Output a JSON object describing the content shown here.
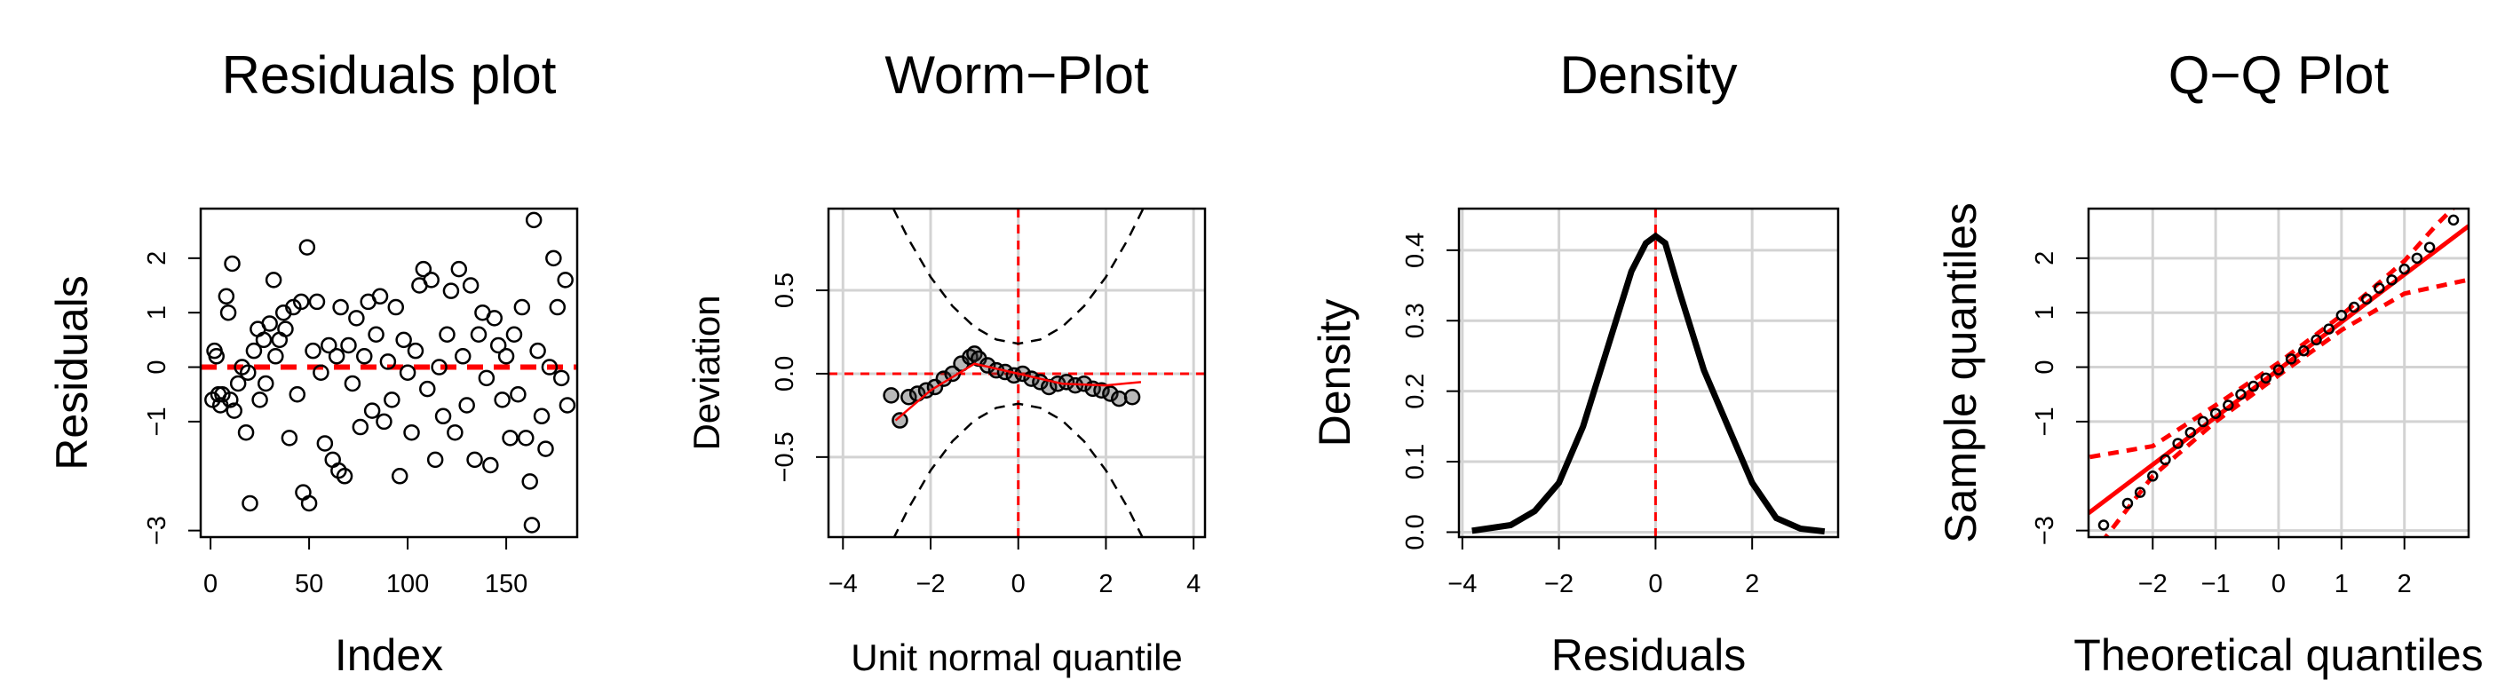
{
  "chart_data": [
    {
      "type": "scatter",
      "title": "Residuals plot",
      "xlabel": "Index",
      "ylabel": "Residuals",
      "xlim": [
        -5,
        186
      ],
      "ylim": [
        -3.12,
        2.91
      ],
      "xticks": [
        0,
        50,
        100,
        150
      ],
      "yticks": [
        {
          "value": -3,
          "label": "−3"
        },
        {
          "value": -1,
          "label": "−1"
        },
        0,
        1,
        2
      ],
      "grid": false,
      "hlines": [
        0
      ],
      "vlines": [],
      "ref_color": "#ff0000",
      "series": [
        {
          "type": "scatter",
          "color": "#000000",
          "x": [
            1,
            2,
            3,
            4,
            5,
            6,
            8,
            9,
            10,
            11,
            12,
            14,
            16,
            18,
            19,
            20,
            22,
            24,
            25,
            27,
            28,
            30,
            32,
            33,
            35,
            37,
            38,
            40,
            42,
            44,
            46,
            47,
            49,
            50,
            52,
            54,
            56,
            58,
            60,
            62,
            64,
            65,
            66,
            68,
            70,
            72,
            74,
            76,
            78,
            80,
            82,
            84,
            86,
            88,
            90,
            92,
            94,
            96,
            98,
            100,
            102,
            104,
            106,
            108,
            110,
            112,
            114,
            116,
            118,
            120,
            122,
            124,
            126,
            128,
            130,
            132,
            134,
            136,
            138,
            140,
            142,
            144,
            146,
            148,
            150,
            152,
            154,
            156,
            158,
            160,
            162,
            163,
            164,
            166,
            168,
            170,
            172,
            174,
            176,
            178,
            180,
            181
          ],
          "values": [
            -0.6,
            0.3,
            0.2,
            -0.5,
            -0.7,
            -0.5,
            1.3,
            1.0,
            -0.6,
            1.9,
            -0.8,
            -0.3,
            0.0,
            -1.2,
            -0.1,
            -2.5,
            0.3,
            0.7,
            -0.6,
            0.5,
            -0.3,
            0.8,
            1.6,
            0.2,
            0.5,
            1.0,
            0.7,
            -1.3,
            1.1,
            -0.5,
            1.2,
            -2.3,
            2.2,
            -2.5,
            0.3,
            1.2,
            -0.1,
            -1.4,
            0.4,
            -1.7,
            0.2,
            -1.9,
            1.1,
            -2.0,
            0.4,
            -0.3,
            0.9,
            -1.1,
            0.2,
            1.2,
            -0.8,
            0.6,
            1.3,
            -1.0,
            0.1,
            -0.6,
            1.1,
            -2.0,
            0.5,
            -0.1,
            -1.2,
            0.3,
            1.5,
            1.8,
            -0.4,
            1.6,
            -1.7,
            0.0,
            -0.9,
            0.6,
            1.4,
            -1.2,
            1.8,
            0.2,
            -0.7,
            1.5,
            -1.7,
            0.6,
            1.0,
            -0.2,
            -1.8,
            0.9,
            0.4,
            -0.6,
            0.2,
            -1.3,
            0.6,
            -0.5,
            1.1,
            -1.3,
            -2.1,
            -2.9,
            2.7,
            0.3,
            -0.9,
            -1.5,
            0.0,
            2.0,
            1.1,
            -0.2,
            1.6,
            -0.7
          ]
        }
      ]
    },
    {
      "type": "scatter",
      "title": "Worm−Plot",
      "xlabel": "Unit normal quantile",
      "ylabel": "Deviation",
      "xlim": [
        -4.33,
        4.26
      ],
      "ylim": [
        -0.98,
        0.99
      ],
      "xticks": [
        {
          "value": -4,
          "label": "−4"
        },
        {
          "value": -2,
          "label": "−2"
        },
        0,
        2,
        4
      ],
      "yticks": [
        {
          "value": -0.5,
          "label": "−0.5"
        },
        {
          "value": 0,
          "label": "0.0"
        },
        0.5
      ],
      "grid": true,
      "hlines": [
        0
      ],
      "vlines": [
        0
      ],
      "ref_color": "#ff0000",
      "series": [
        {
          "type": "line",
          "color": "#000000",
          "dash": true,
          "x": [
            -2.85,
            -2.5,
            -2,
            -1.5,
            -1,
            -0.5,
            0,
            0.5,
            1,
            1.5,
            2,
            2.5,
            2.85
          ],
          "values": [
            0.99,
            0.805,
            0.58,
            0.405,
            0.28,
            0.205,
            0.18,
            0.205,
            0.28,
            0.405,
            0.58,
            0.805,
            0.99
          ]
        },
        {
          "type": "line",
          "color": "#000000",
          "dash": true,
          "x": [
            -2.85,
            -2.5,
            -2,
            -1.5,
            -1,
            -0.5,
            0,
            0.5,
            1,
            1.5,
            2,
            2.5,
            2.85
          ],
          "values": [
            -0.99,
            -0.805,
            -0.58,
            -0.405,
            -0.28,
            -0.205,
            -0.18,
            -0.205,
            -0.28,
            -0.405,
            -0.58,
            -0.805,
            -0.99
          ]
        },
        {
          "type": "scatter",
          "color": "#000000",
          "x": [
            -2.9,
            -2.7,
            -2.5,
            -2.3,
            -2.1,
            -1.9,
            -1.7,
            -1.5,
            -1.3,
            -1.1,
            -1.0,
            -0.9,
            -0.7,
            -0.5,
            -0.3,
            -0.1,
            0.1,
            0.3,
            0.5,
            0.7,
            0.9,
            1.1,
            1.3,
            1.5,
            1.7,
            1.9,
            2.1,
            2.3,
            2.6
          ],
          "values": [
            -0.13,
            -0.28,
            -0.14,
            -0.12,
            -0.1,
            -0.08,
            -0.03,
            0.0,
            0.06,
            0.1,
            0.12,
            0.09,
            0.05,
            0.02,
            0.01,
            -0.01,
            0.0,
            -0.03,
            -0.05,
            -0.08,
            -0.06,
            -0.05,
            -0.07,
            -0.06,
            -0.09,
            -0.1,
            -0.12,
            -0.15,
            -0.14
          ]
        },
        {
          "type": "line",
          "color": "#ff0000",
          "x": [
            -2.8,
            -2,
            -1,
            0,
            1,
            2,
            2.8
          ],
          "values": [
            -0.28,
            -0.1,
            0.06,
            0.0,
            -0.06,
            -0.07,
            -0.05
          ]
        }
      ]
    },
    {
      "type": "line",
      "title": "Density",
      "xlabel": "Residuals",
      "ylabel": "Density",
      "xlim": [
        -4.07,
        3.78
      ],
      "ylim": [
        -0.007,
        0.459
      ],
      "xticks": [
        {
          "value": -4,
          "label": "−4"
        },
        {
          "value": -2,
          "label": "−2"
        },
        0,
        2
      ],
      "yticks": [
        {
          "value": 0,
          "label": "0.0"
        },
        0.1,
        0.2,
        0.3,
        0.4
      ],
      "grid": true,
      "hlines": [],
      "vlines": [
        0
      ],
      "ref_color": "#ff0000",
      "series": [
        {
          "type": "line",
          "color": "#000000",
          "width": 7,
          "x": [
            -3.8,
            -3,
            -2.5,
            -2,
            -1.5,
            -1,
            -0.5,
            -0.2,
            0,
            0.2,
            0.5,
            1,
            1.5,
            2,
            2.5,
            3,
            3.5
          ],
          "values": [
            0.002,
            0.01,
            0.03,
            0.07,
            0.15,
            0.26,
            0.37,
            0.41,
            0.42,
            0.41,
            0.34,
            0.23,
            0.15,
            0.07,
            0.02,
            0.005,
            0.001
          ]
        }
      ]
    },
    {
      "type": "scatter",
      "title": "Q−Q Plot",
      "xlabel": "Theoretical quantiles",
      "ylabel": "Sample quantiles",
      "xlim": [
        -3.02,
        3.02
      ],
      "ylim": [
        -3.12,
        2.91
      ],
      "xticks": [
        {
          "value": -2,
          "label": "−2"
        },
        {
          "value": -1,
          "label": "−1"
        },
        0,
        1,
        2
      ],
      "yticks": [
        {
          "value": -3,
          "label": "−3"
        },
        {
          "value": -1,
          "label": "−1"
        },
        0,
        1,
        2
      ],
      "grid": true,
      "hlines": [],
      "vlines": [],
      "ref_color": "#ff0000",
      "series": [
        {
          "type": "line",
          "color": "#ff0000",
          "width": 5,
          "x": [
            -3.02,
            3.02
          ],
          "values": [
            -2.68,
            2.59
          ]
        },
        {
          "type": "line",
          "color": "#ff0000",
          "width": 5,
          "dash": true,
          "x": [
            -3,
            -2,
            -1,
            0,
            1,
            2,
            2.5,
            2.8
          ],
          "values": [
            -1.65,
            -1.45,
            -0.7,
            0.08,
            0.95,
            1.95,
            2.6,
            2.95
          ]
        },
        {
          "type": "line",
          "color": "#ff0000",
          "width": 5,
          "dash": true,
          "x": [
            -3,
            -2,
            -1,
            0,
            1,
            2,
            3
          ],
          "values": [
            -3.5,
            -2.0,
            -1.0,
            -0.15,
            0.68,
            1.35,
            1.6
          ]
        },
        {
          "type": "scatter",
          "color": "#000000",
          "small": true,
          "x": [
            -2.78,
            -2.4,
            -2.2,
            -2.0,
            -1.8,
            -1.6,
            -1.4,
            -1.2,
            -1.0,
            -0.8,
            -0.6,
            -0.4,
            -0.2,
            0,
            0.2,
            0.4,
            0.6,
            0.8,
            1.0,
            1.2,
            1.4,
            1.6,
            1.8,
            2.0,
            2.2,
            2.4,
            2.78
          ],
          "values": [
            -2.9,
            -2.5,
            -2.3,
            -2.0,
            -1.7,
            -1.4,
            -1.2,
            -1.0,
            -0.85,
            -0.7,
            -0.5,
            -0.35,
            -0.2,
            -0.05,
            0.15,
            0.3,
            0.5,
            0.7,
            0.95,
            1.1,
            1.25,
            1.45,
            1.6,
            1.8,
            2.0,
            2.2,
            2.7
          ]
        }
      ]
    }
  ]
}
